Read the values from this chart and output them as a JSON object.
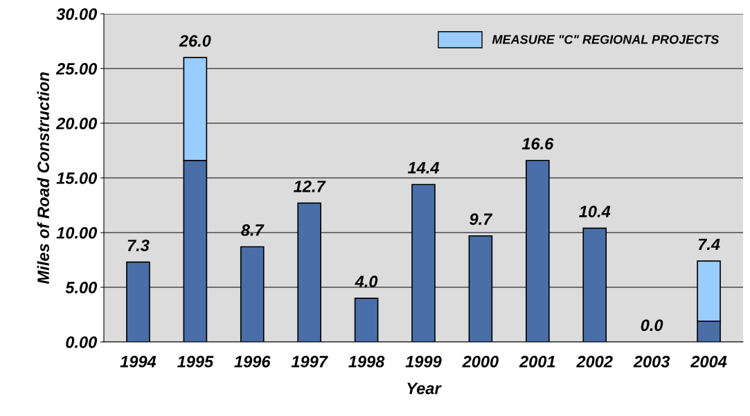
{
  "chart_data": {
    "type": "bar",
    "stacked": true,
    "xlabel": "Year",
    "ylabel": "Miles of Road Construction",
    "categories": [
      "1994",
      "1995",
      "1996",
      "1997",
      "1998",
      "1999",
      "2000",
      "2001",
      "2002",
      "2003",
      "2004"
    ],
    "series": [
      {
        "color": "#4a6fa8",
        "values": [
          7.3,
          16.6,
          8.7,
          12.7,
          4.0,
          14.4,
          9.7,
          16.6,
          10.4,
          0.0,
          1.9
        ]
      },
      {
        "name": "MEASURE \"C\" REGIONAL PROJECTS",
        "color": "#99ccff",
        "values": [
          0,
          9.4,
          0,
          0,
          0,
          0,
          0,
          0,
          0,
          0,
          5.5
        ]
      }
    ],
    "totals": [
      "7.3",
      "26.0",
      "8.7",
      "12.7",
      "4.0",
      "14.4",
      "9.7",
      "16.6",
      "10.4",
      "0.0",
      "7.4"
    ],
    "ylim": [
      0,
      30
    ],
    "yticks": [
      {
        "value": 0,
        "label": "0.00"
      },
      {
        "value": 5,
        "label": "5.00"
      },
      {
        "value": 10,
        "label": "10.00"
      },
      {
        "value": 15,
        "label": "15.00"
      },
      {
        "value": 20,
        "label": "20.00"
      },
      {
        "value": 25,
        "label": "25.00"
      },
      {
        "value": 30,
        "label": "30.00"
      }
    ],
    "grid": "y",
    "legend": "top right"
  }
}
